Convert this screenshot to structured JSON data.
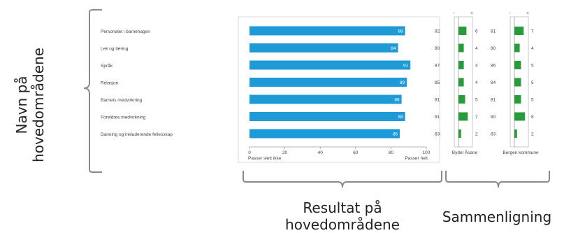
{
  "labels": {
    "left": [
      "Navn på",
      "hovedområdene"
    ],
    "bottom_center": [
      "Resultat på",
      "hovedområdene"
    ],
    "bottom_right": "Sammenligning"
  },
  "categories": [
    "Personalet i barnehagen",
    "Lek og læring",
    "Språk",
    "Relasjon",
    "Barnets medvirkning",
    "Foreldres medvirkning",
    "Danning og inkluderende fellesskap"
  ],
  "chart_data": [
    {
      "type": "bar",
      "orientation": "horizontal",
      "categories": [
        "Personalet i barnehagen",
        "Lek og læring",
        "Språk",
        "Relasjon",
        "Barnets medvirkning",
        "Foreldres medvirkning",
        "Danning og inkluderende fellesskap"
      ],
      "values": [
        88,
        84,
        91,
        89,
        86,
        88,
        85
      ],
      "xlim": [
        0,
        100
      ],
      "xticks": [
        0,
        20,
        40,
        60,
        80,
        100
      ],
      "x_left_label": "Passer slett ikke",
      "x_right_label": "Passer helt",
      "color": "#1e9ad6"
    },
    {
      "type": "bar",
      "title": "Bydel Åsane",
      "reference_values": [
        82,
        80,
        87,
        85,
        81,
        81,
        83
      ],
      "differences": [
        6,
        4,
        4,
        4,
        5,
        7,
        2
      ],
      "sign_labels": [
        "-",
        "+"
      ],
      "color": "#2a9b3a"
    },
    {
      "type": "bar",
      "title": "Bergen kommune",
      "reference_values": [
        81,
        80,
        86,
        84,
        81,
        80,
        83
      ],
      "differences": [
        7,
        4,
        5,
        5,
        5,
        8,
        2
      ],
      "sign_labels": [
        "-",
        "+"
      ],
      "color": "#2a9b3a"
    }
  ]
}
